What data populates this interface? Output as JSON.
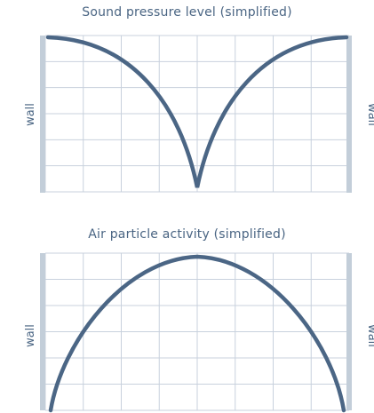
{
  "colors": {
    "grid": "#c8d1dd",
    "wall": "#c3ced9",
    "curve": "#4b6685",
    "text": "#4a6583"
  },
  "panels": [
    {
      "title": "Sound pressure level (simplified)",
      "left_wall_label": "wall",
      "right_wall_label": "wall",
      "curve_shape": "two quarter-arcs falling from each wall to zero at the center"
    },
    {
      "title": "Air particle activity (simplified)",
      "left_wall_label": "wall",
      "right_wall_label": "wall",
      "curve_shape": "single arch rising from zero at each wall to a peak at the center"
    }
  ]
}
